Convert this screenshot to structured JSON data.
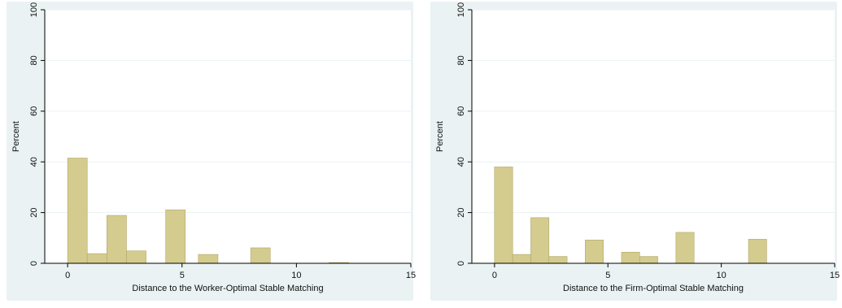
{
  "chart_data": [
    {
      "type": "bar",
      "title": "",
      "xlabel": "Distance to the Worker-Optimal Stable Matching",
      "ylabel": "Percent",
      "xlim": [
        -1,
        15
      ],
      "ylim": [
        0,
        100
      ],
      "xticks": [
        "0",
        "5",
        "10",
        "15"
      ],
      "yticks": [
        "0",
        "20",
        "40",
        "60",
        "80",
        "100"
      ],
      "grid": true,
      "legend": "none",
      "bin_width": 0.857,
      "bins": [
        {
          "start": 0,
          "value": 41.5
        },
        {
          "start": 0.857,
          "value": 3.8
        },
        {
          "start": 1.714,
          "value": 18.9
        },
        {
          "start": 2.571,
          "value": 4.9
        },
        {
          "start": 4.286,
          "value": 21.1
        },
        {
          "start": 5.714,
          "value": 3.5
        },
        {
          "start": 8.0,
          "value": 6.1
        },
        {
          "start": 11.429,
          "value": 0.3
        }
      ],
      "colors": {
        "bar": "#d4cc8f",
        "bar_edge": "#b0a668",
        "plot_bg": "#ffffff",
        "outer_bg": "#eaf2f3",
        "grid": "#eaf2f3"
      }
    },
    {
      "type": "bar",
      "title": "",
      "xlabel": "Distance to the Firm-Optimal Stable Matching",
      "ylabel": "Percent",
      "xlim": [
        -1,
        15
      ],
      "ylim": [
        0,
        100
      ],
      "xticks": [
        "0",
        "5",
        "10",
        "15"
      ],
      "yticks": [
        "0",
        "20",
        "40",
        "60",
        "80",
        "100"
      ],
      "grid": true,
      "legend": "none",
      "bin_width": 0.8,
      "bins": [
        {
          "start": 0,
          "value": 38.0
        },
        {
          "start": 0.8,
          "value": 3.5
        },
        {
          "start": 1.6,
          "value": 18.0
        },
        {
          "start": 2.4,
          "value": 2.7
        },
        {
          "start": 4.0,
          "value": 9.2
        },
        {
          "start": 5.6,
          "value": 4.4
        },
        {
          "start": 6.4,
          "value": 2.7
        },
        {
          "start": 8.0,
          "value": 12.2
        },
        {
          "start": 11.2,
          "value": 9.5
        }
      ],
      "colors": {
        "bar": "#d4cc8f",
        "bar_edge": "#b0a668",
        "plot_bg": "#ffffff",
        "outer_bg": "#eaf2f3",
        "grid": "#eaf2f3"
      }
    }
  ]
}
